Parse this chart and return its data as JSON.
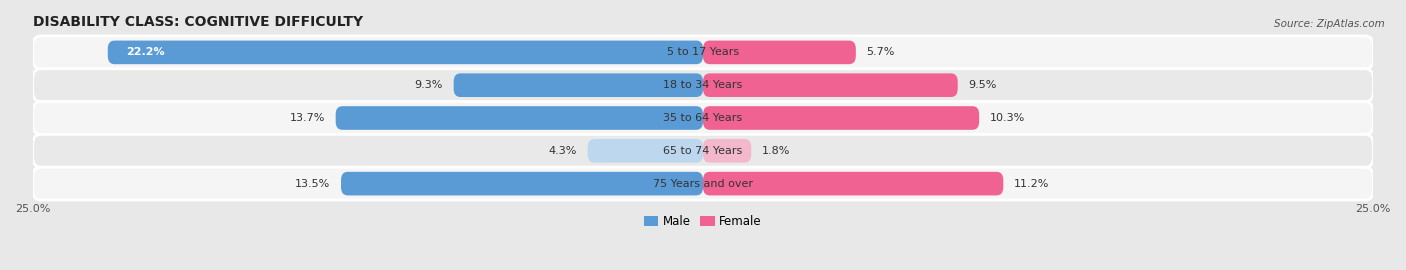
{
  "title": "DISABILITY CLASS: COGNITIVE DIFFICULTY",
  "source": "Source: ZipAtlas.com",
  "categories": [
    "5 to 17 Years",
    "18 to 34 Years",
    "35 to 64 Years",
    "65 to 74 Years",
    "75 Years and over"
  ],
  "male_values": [
    22.2,
    9.3,
    13.7,
    4.3,
    13.5
  ],
  "female_values": [
    5.7,
    9.5,
    10.3,
    1.8,
    11.2
  ],
  "male_color_strong": "#5b9bd5",
  "male_color_light": "#bdd7ee",
  "female_color_strong": "#f06292",
  "female_color_light": "#f4b8cc",
  "axis_max": 25.0,
  "background_color": "#e8e8e8",
  "row_bg_colors": [
    "#f5f5f5",
    "#e9e9e9"
  ],
  "title_fontsize": 10,
  "label_fontsize": 8,
  "tick_fontsize": 8,
  "legend_fontsize": 8.5,
  "strong_threshold_male": 8.0,
  "strong_threshold_female": 3.0
}
